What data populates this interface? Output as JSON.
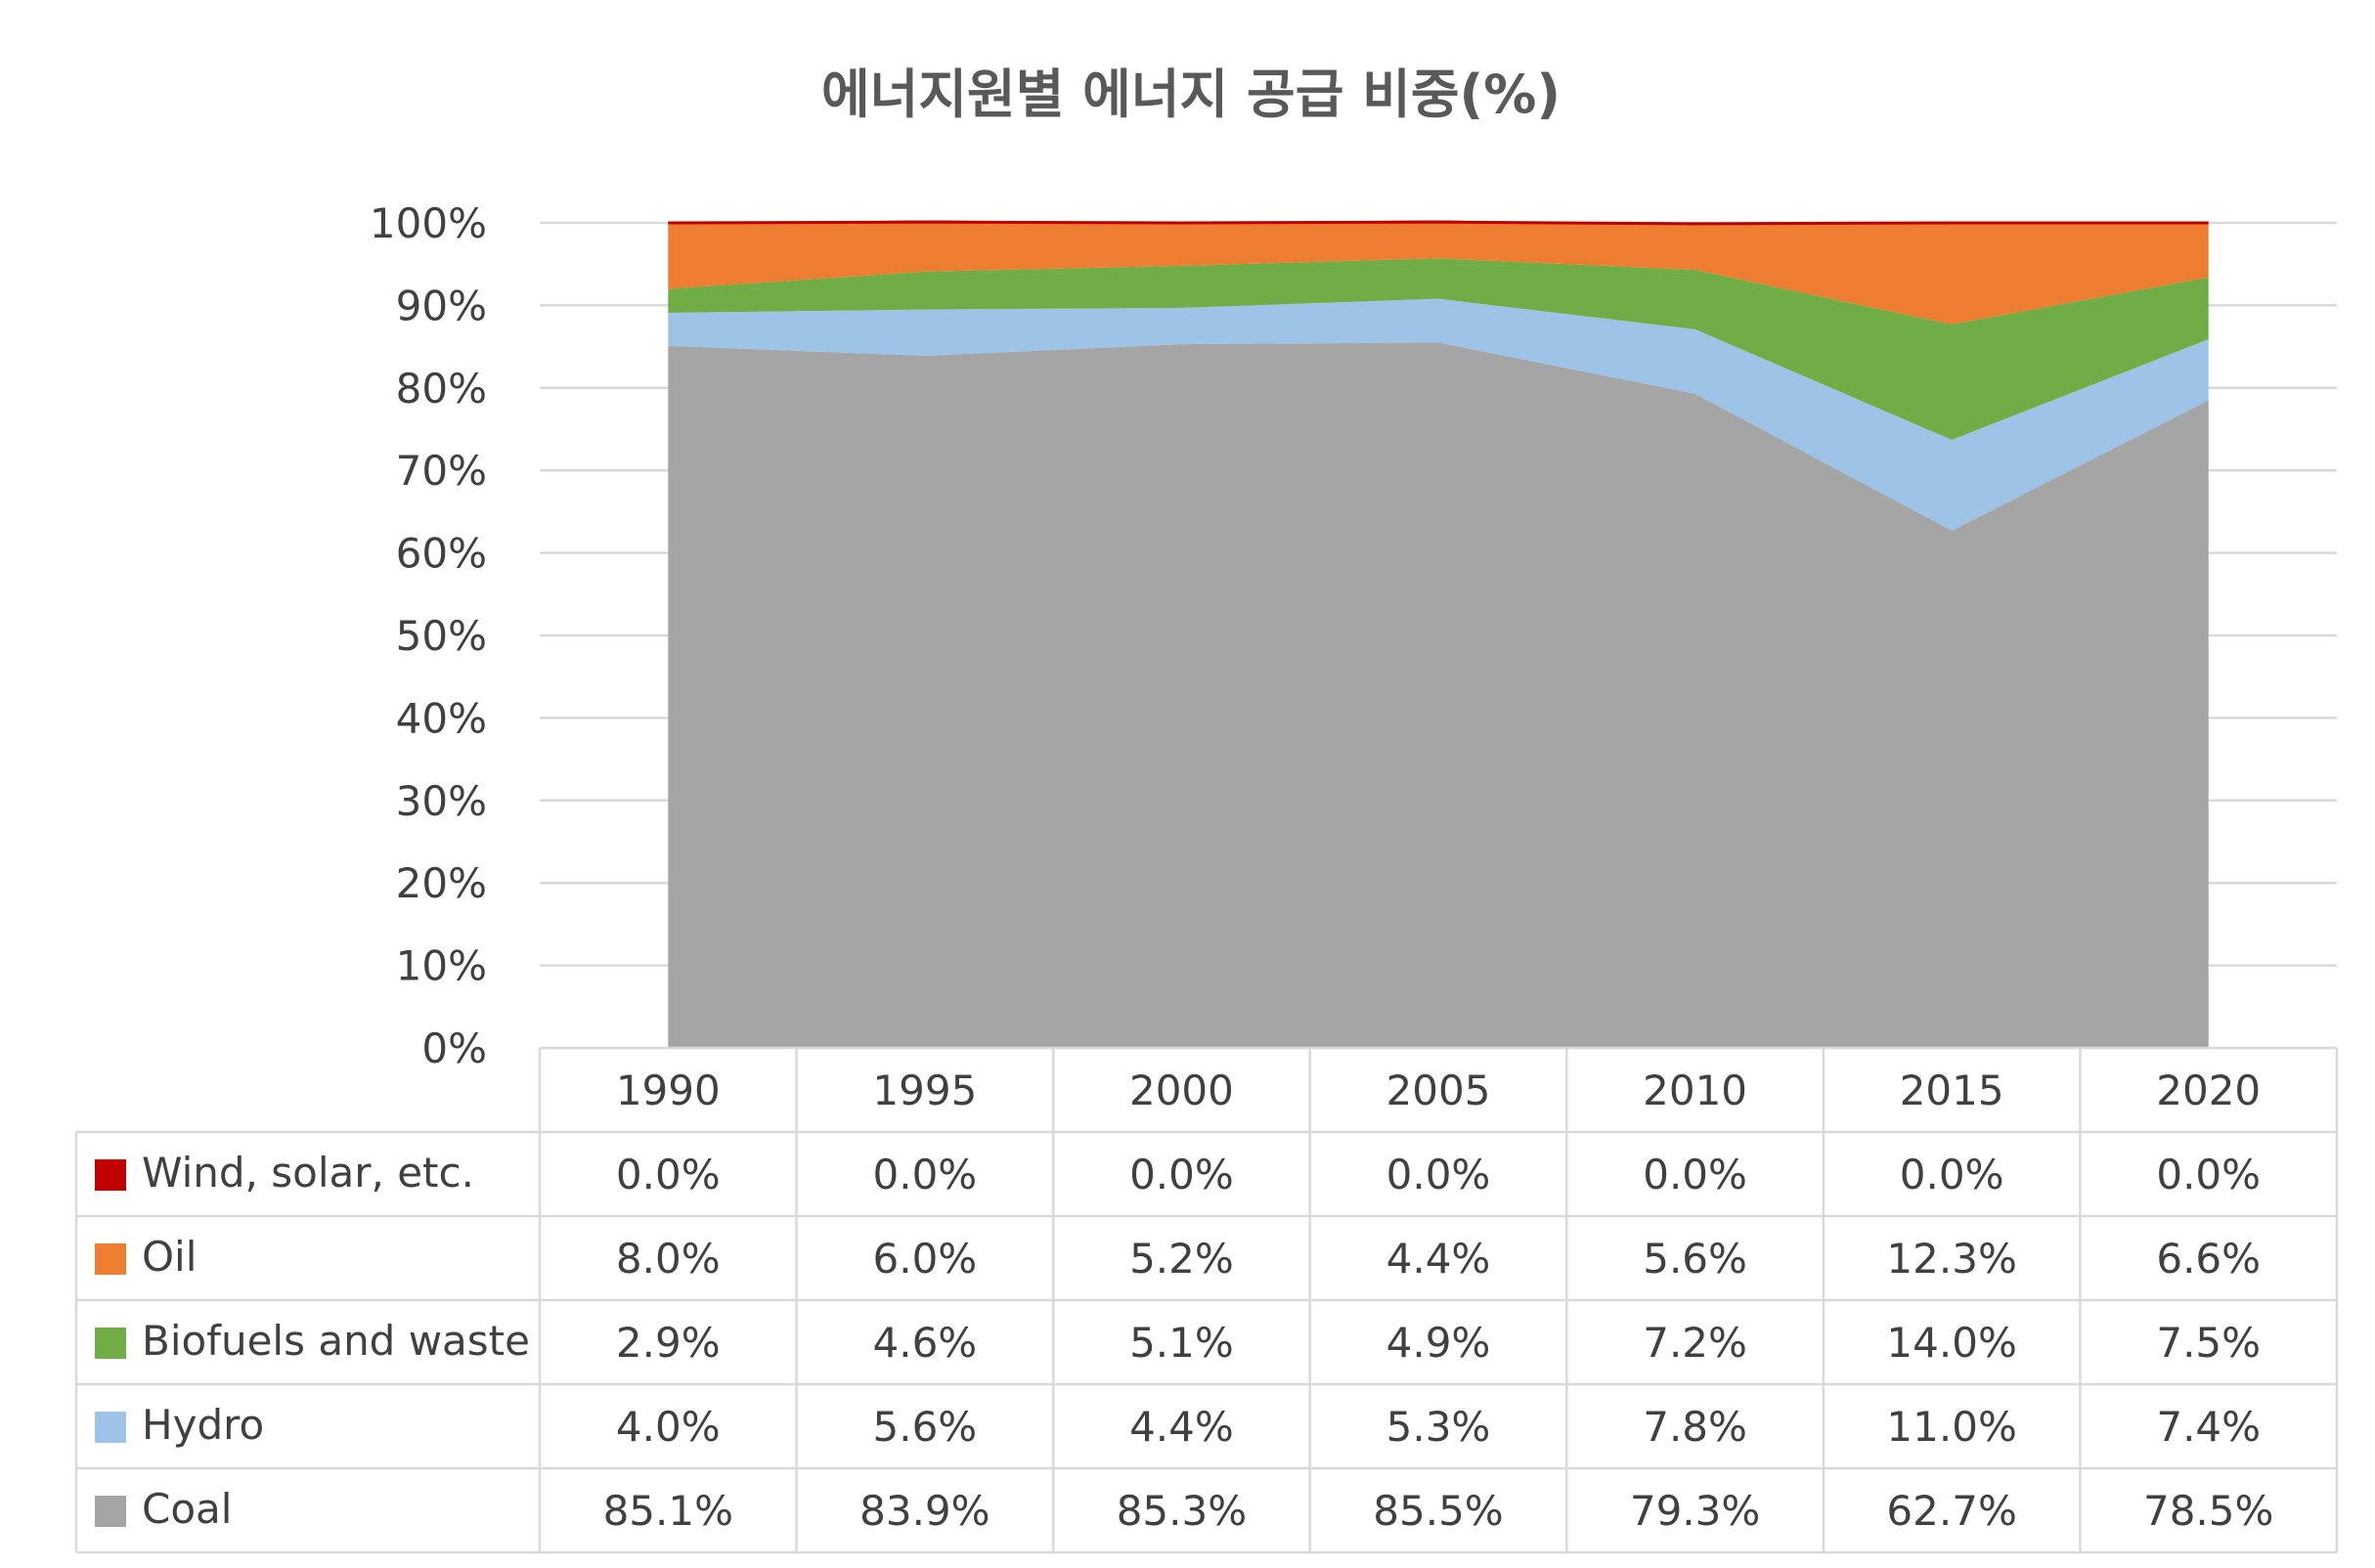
{
  "chart_data": {
    "type": "area",
    "stacked": true,
    "title": "에너지원별 에너지 공급 비중(%)",
    "categories": [
      "1990",
      "1995",
      "2000",
      "2005",
      "2010",
      "2015",
      "2020"
    ],
    "ylim": [
      0,
      100
    ],
    "yticks": [
      "0%",
      "10%",
      "20%",
      "30%",
      "40%",
      "50%",
      "60%",
      "70%",
      "80%",
      "90%",
      "100%"
    ],
    "grid": true,
    "legend": "data-table-left",
    "series": [
      {
        "name": "Coal",
        "color": "#A5A5A5",
        "values": [
          85.1,
          83.9,
          85.3,
          85.5,
          79.3,
          62.7,
          78.5
        ],
        "labels": [
          "85.1%",
          "83.9%",
          "85.3%",
          "85.5%",
          "79.3%",
          "62.7%",
          "78.5%"
        ]
      },
      {
        "name": "Hydro",
        "color": "#9DC3E6",
        "values": [
          4.0,
          5.6,
          4.4,
          5.3,
          7.8,
          11.0,
          7.4
        ],
        "labels": [
          "4.0%",
          "5.6%",
          "4.4%",
          "5.3%",
          "7.8%",
          "11.0%",
          "7.4%"
        ]
      },
      {
        "name": "Biofuels and waste",
        "color": "#70AD47",
        "values": [
          2.9,
          4.6,
          5.1,
          4.9,
          7.2,
          14.0,
          7.5
        ],
        "labels": [
          "2.9%",
          "4.6%",
          "5.1%",
          "4.9%",
          "7.2%",
          "14.0%",
          "7.5%"
        ]
      },
      {
        "name": "Oil",
        "color": "#ED7D31",
        "values": [
          8.0,
          6.0,
          5.2,
          4.4,
          5.6,
          12.3,
          6.6
        ],
        "labels": [
          "8.0%",
          "6.0%",
          "5.2%",
          "4.4%",
          "5.6%",
          "12.3%",
          "6.6%"
        ]
      },
      {
        "name": "Wind, solar, etc.",
        "color": "#C00000",
        "values": [
          0.0,
          0.0,
          0.0,
          0.0,
          0.0,
          0.0,
          0.0
        ],
        "labels": [
          "0.0%",
          "0.0%",
          "0.0%",
          "0.0%",
          "0.0%",
          "0.0%",
          "0.0%"
        ]
      }
    ],
    "table_row_order": [
      "Wind, solar, etc.",
      "Oil",
      "Biofuels and waste",
      "Hydro",
      "Coal"
    ]
  }
}
